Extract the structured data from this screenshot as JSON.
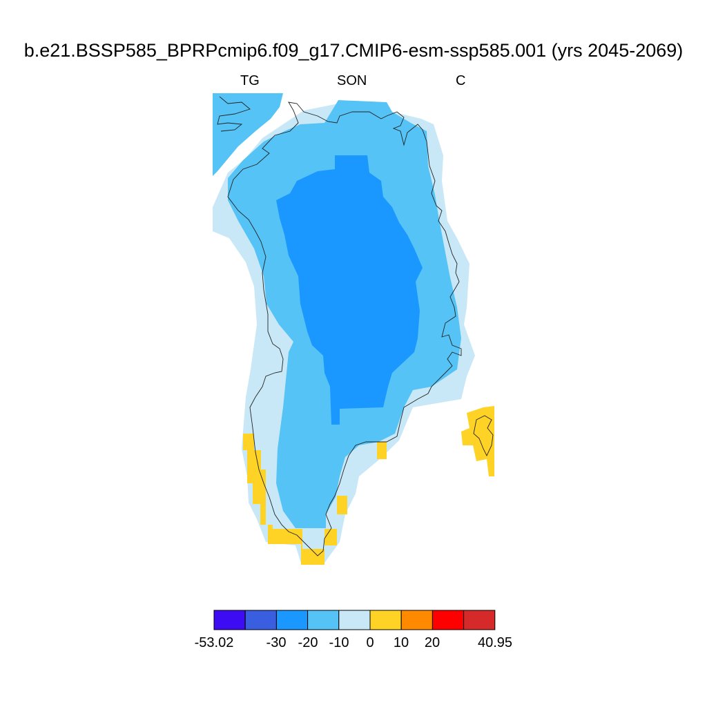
{
  "title": "b.e21.BSSP585_BPRPcmip6.f09_g17.CMIP6-esm-ssp585.001 (yrs 2045-2069)",
  "subtitle_left": "TG",
  "subtitle_center": "SON",
  "subtitle_right": "C",
  "colorbar": {
    "colors": [
      "#3e0cf2",
      "#3a5ee0",
      "#1a98ff",
      "#55c3f5",
      "#c9e8f7",
      "#ffd325",
      "#ff8a00",
      "#ff0000",
      "#d62a2a"
    ],
    "labels": [
      "-53.02",
      "-30",
      "-20",
      "-10",
      "0",
      "10",
      "20",
      "40.95"
    ]
  }
}
